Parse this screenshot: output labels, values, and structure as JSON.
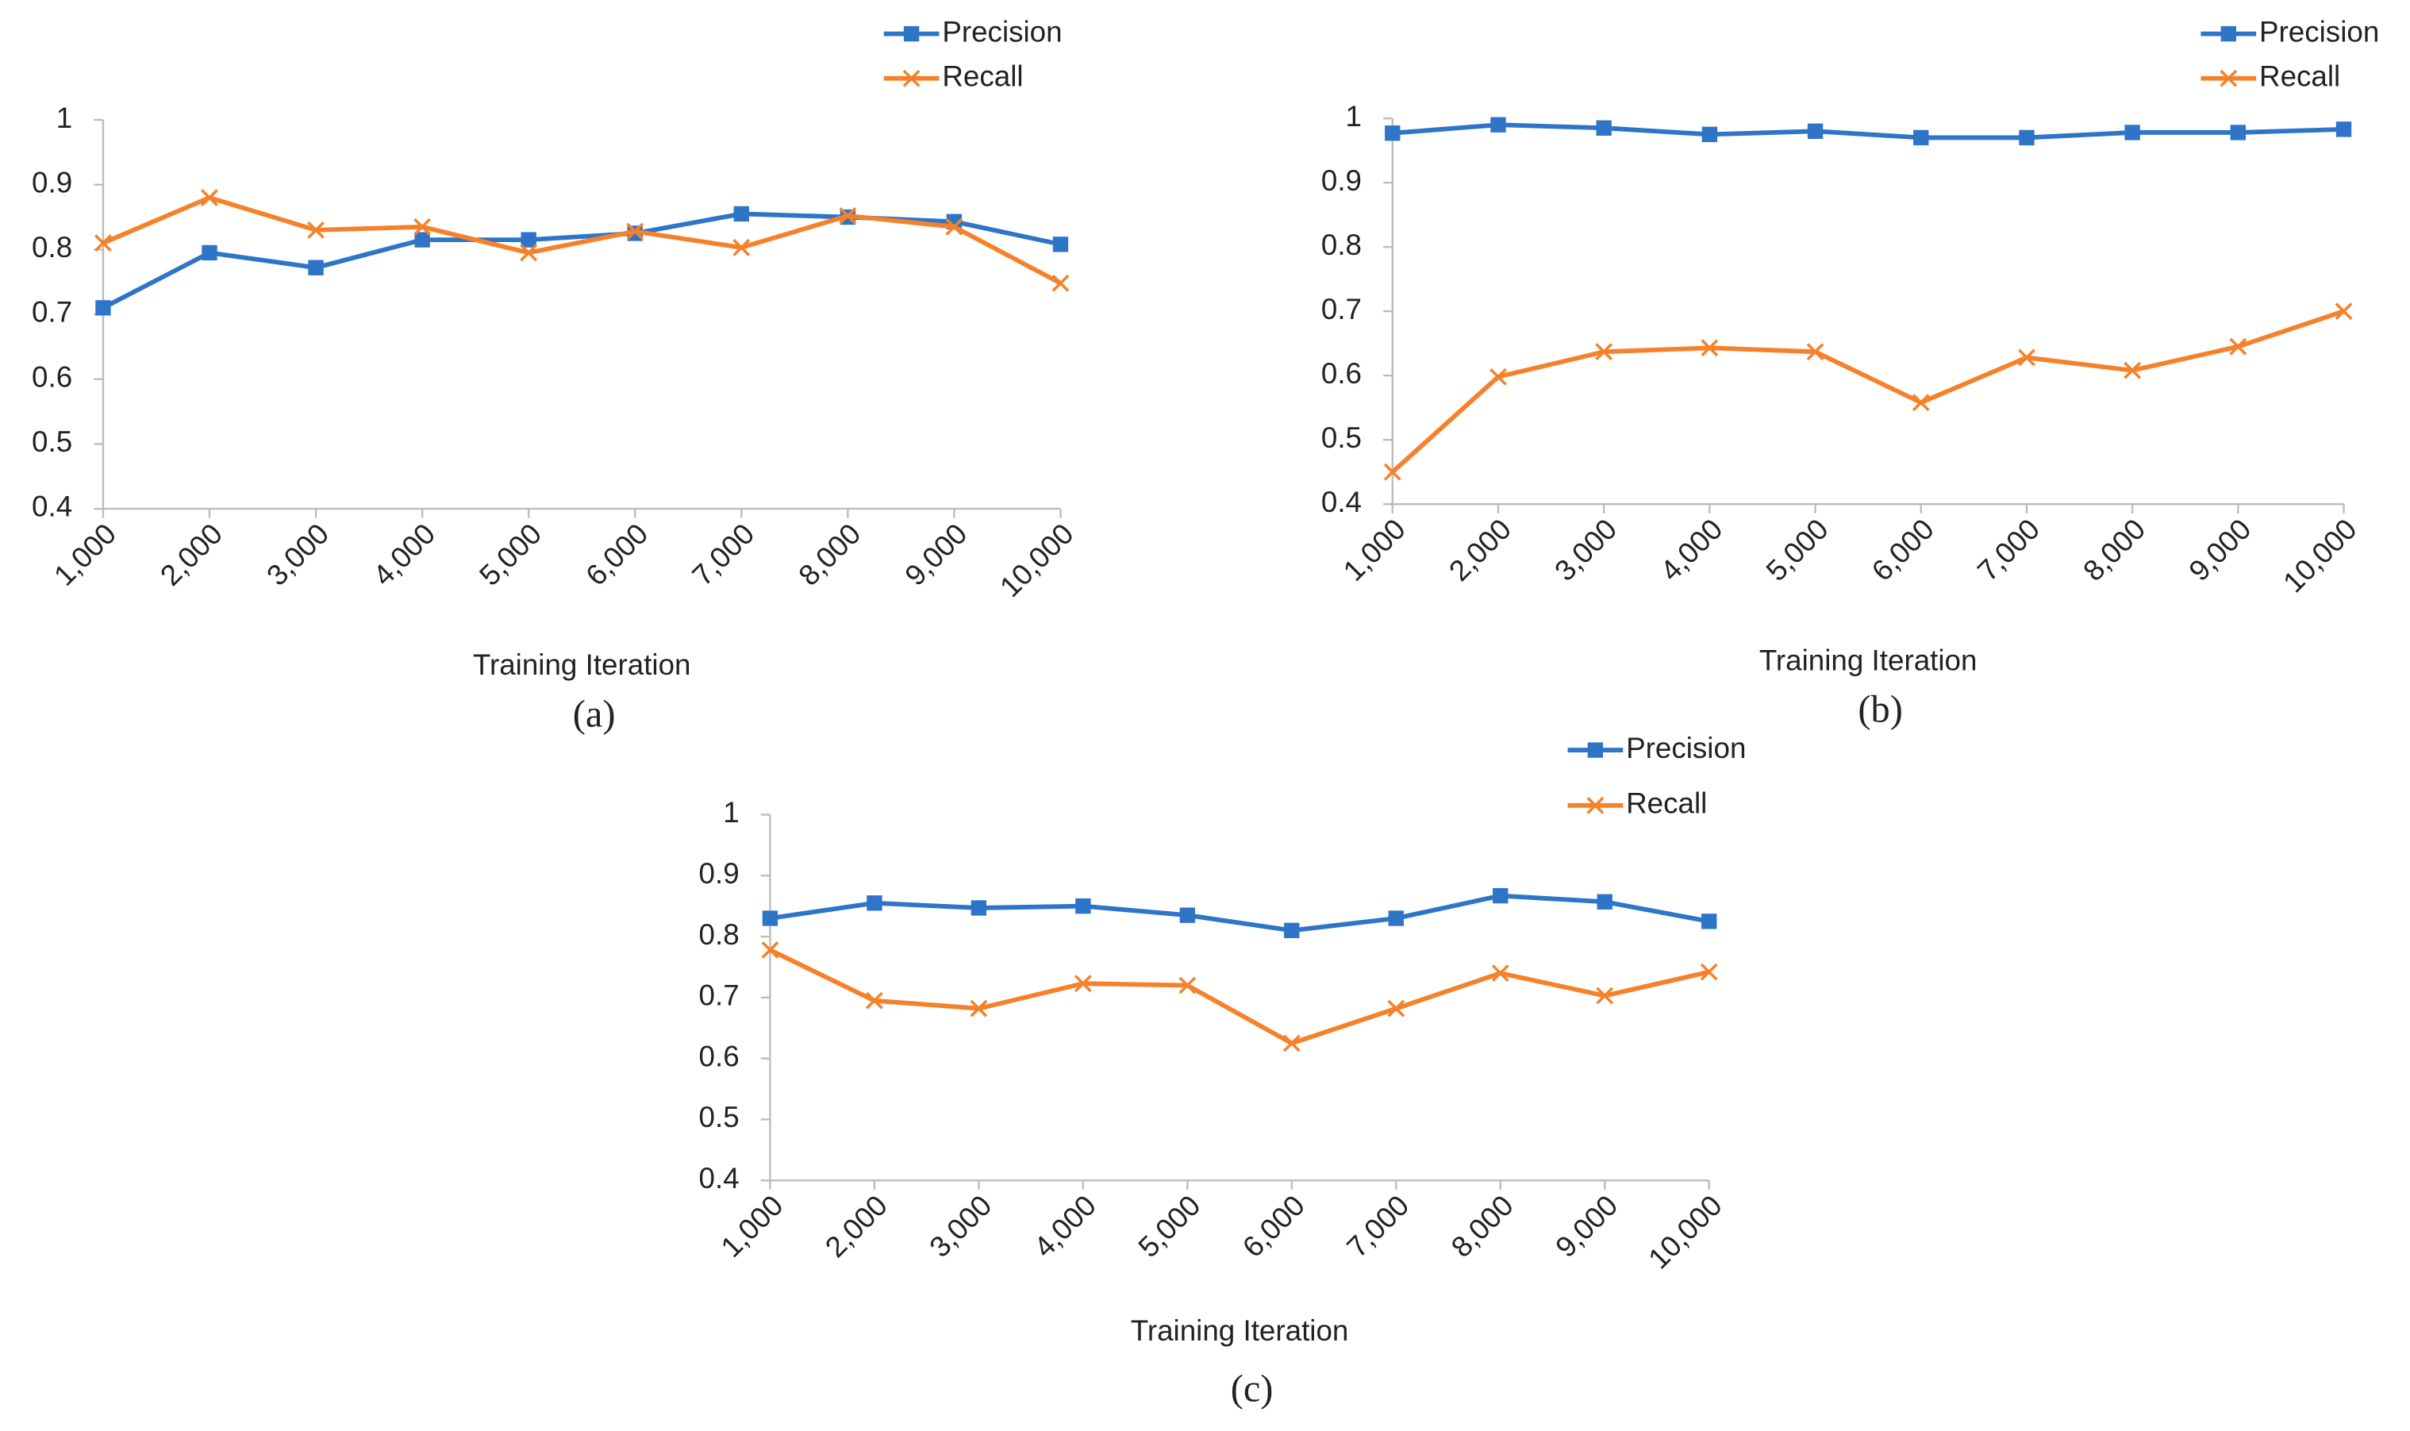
{
  "chart_data": [
    {
      "type": "line",
      "x_label": "Training Iteration",
      "caption": "(a)",
      "categories": [
        "1,000",
        "2,000",
        "3,000",
        "4,000",
        "5,000",
        "6,000",
        "7,000",
        "8,000",
        "9,000",
        "10,000"
      ],
      "series": [
        {
          "name": "Precision",
          "color": "#2e75c8",
          "marker": "square",
          "values": [
            0.71,
            0.795,
            0.772,
            0.815,
            0.815,
            0.825,
            0.855,
            0.85,
            0.843,
            0.808
          ]
        },
        {
          "name": "Recall",
          "color": "#f5822a",
          "marker": "x",
          "values": [
            0.81,
            0.88,
            0.83,
            0.835,
            0.795,
            0.828,
            0.803,
            0.852,
            0.835,
            0.748
          ]
        }
      ],
      "ylim": [
        0.4,
        1
      ],
      "yticks": [
        0.4,
        0.5,
        0.6,
        0.7,
        0.8,
        0.9,
        1
      ],
      "legend": "top-right"
    },
    {
      "type": "line",
      "x_label": "Training Iteration",
      "caption": "(b)",
      "categories": [
        "1,000",
        "2,000",
        "3,000",
        "4,000",
        "5,000",
        "6,000",
        "7,000",
        "8,000",
        "9,000",
        "10,000"
      ],
      "series": [
        {
          "name": "Precision",
          "color": "#2e75c8",
          "marker": "square",
          "values": [
            0.977,
            0.99,
            0.985,
            0.975,
            0.98,
            0.97,
            0.97,
            0.978,
            0.978,
            0.983
          ]
        },
        {
          "name": "Recall",
          "color": "#f5822a",
          "marker": "x",
          "values": [
            0.45,
            0.598,
            0.637,
            0.643,
            0.637,
            0.558,
            0.628,
            0.608,
            0.645,
            0.7
          ]
        }
      ],
      "ylim": [
        0.4,
        1
      ],
      "yticks": [
        0.4,
        0.5,
        0.6,
        0.7,
        0.8,
        0.9,
        1
      ],
      "legend": "top-right"
    },
    {
      "type": "line",
      "x_label": "Training Iteration",
      "caption": "(c)",
      "categories": [
        "1,000",
        "2,000",
        "3,000",
        "4,000",
        "5,000",
        "6,000",
        "7,000",
        "8,000",
        "9,000",
        "10,000"
      ],
      "series": [
        {
          "name": "Precision",
          "color": "#2e75c8",
          "marker": "square",
          "values": [
            0.83,
            0.855,
            0.847,
            0.85,
            0.835,
            0.81,
            0.83,
            0.867,
            0.857,
            0.825
          ]
        },
        {
          "name": "Recall",
          "color": "#f5822a",
          "marker": "x",
          "values": [
            0.778,
            0.695,
            0.682,
            0.723,
            0.72,
            0.625,
            0.682,
            0.74,
            0.703,
            0.742
          ]
        }
      ],
      "ylim": [
        0.4,
        1
      ],
      "yticks": [
        0.4,
        0.5,
        0.6,
        0.7,
        0.8,
        0.9,
        1
      ],
      "legend": "top-right"
    }
  ]
}
